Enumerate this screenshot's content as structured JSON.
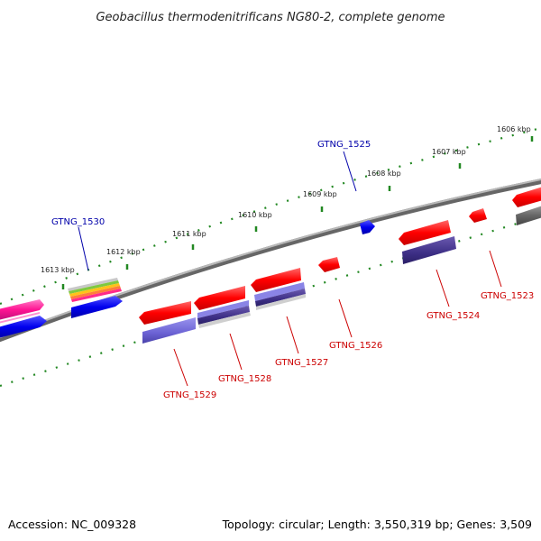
{
  "title": "Geobacillus thermodenitrificans NG80-2, complete genome",
  "footer": {
    "accession": "Accession: NC_009328",
    "summary": "Topology: circular; Length: 3,550,319 bp; Genes: 3,509"
  },
  "colors": {
    "forward_label": "#0000aa",
    "reverse_label": "#cc0000",
    "tick": "#228822",
    "backbone": "#888888"
  },
  "ticks": [
    {
      "label": "1606 kbp"
    },
    {
      "label": "1607 kbp"
    },
    {
      "label": "1608 kbp"
    },
    {
      "label": "1609 kbp"
    },
    {
      "label": "1610 kbp"
    },
    {
      "label": "1611 kbp"
    },
    {
      "label": "1612 kbp"
    },
    {
      "label": "1613 kbp"
    }
  ],
  "genes": [
    {
      "label": "GTNG_1525",
      "strand": "forward"
    },
    {
      "label": "GTNG_1530",
      "strand": "forward"
    },
    {
      "label": "GTNG_1523",
      "strand": "reverse"
    },
    {
      "label": "GTNG_1524",
      "strand": "reverse"
    },
    {
      "label": "GTNG_1526",
      "strand": "reverse"
    },
    {
      "label": "GTNG_1527",
      "strand": "reverse"
    },
    {
      "label": "GTNG_1528",
      "strand": "reverse"
    },
    {
      "label": "GTNG_1529",
      "strand": "reverse"
    }
  ]
}
